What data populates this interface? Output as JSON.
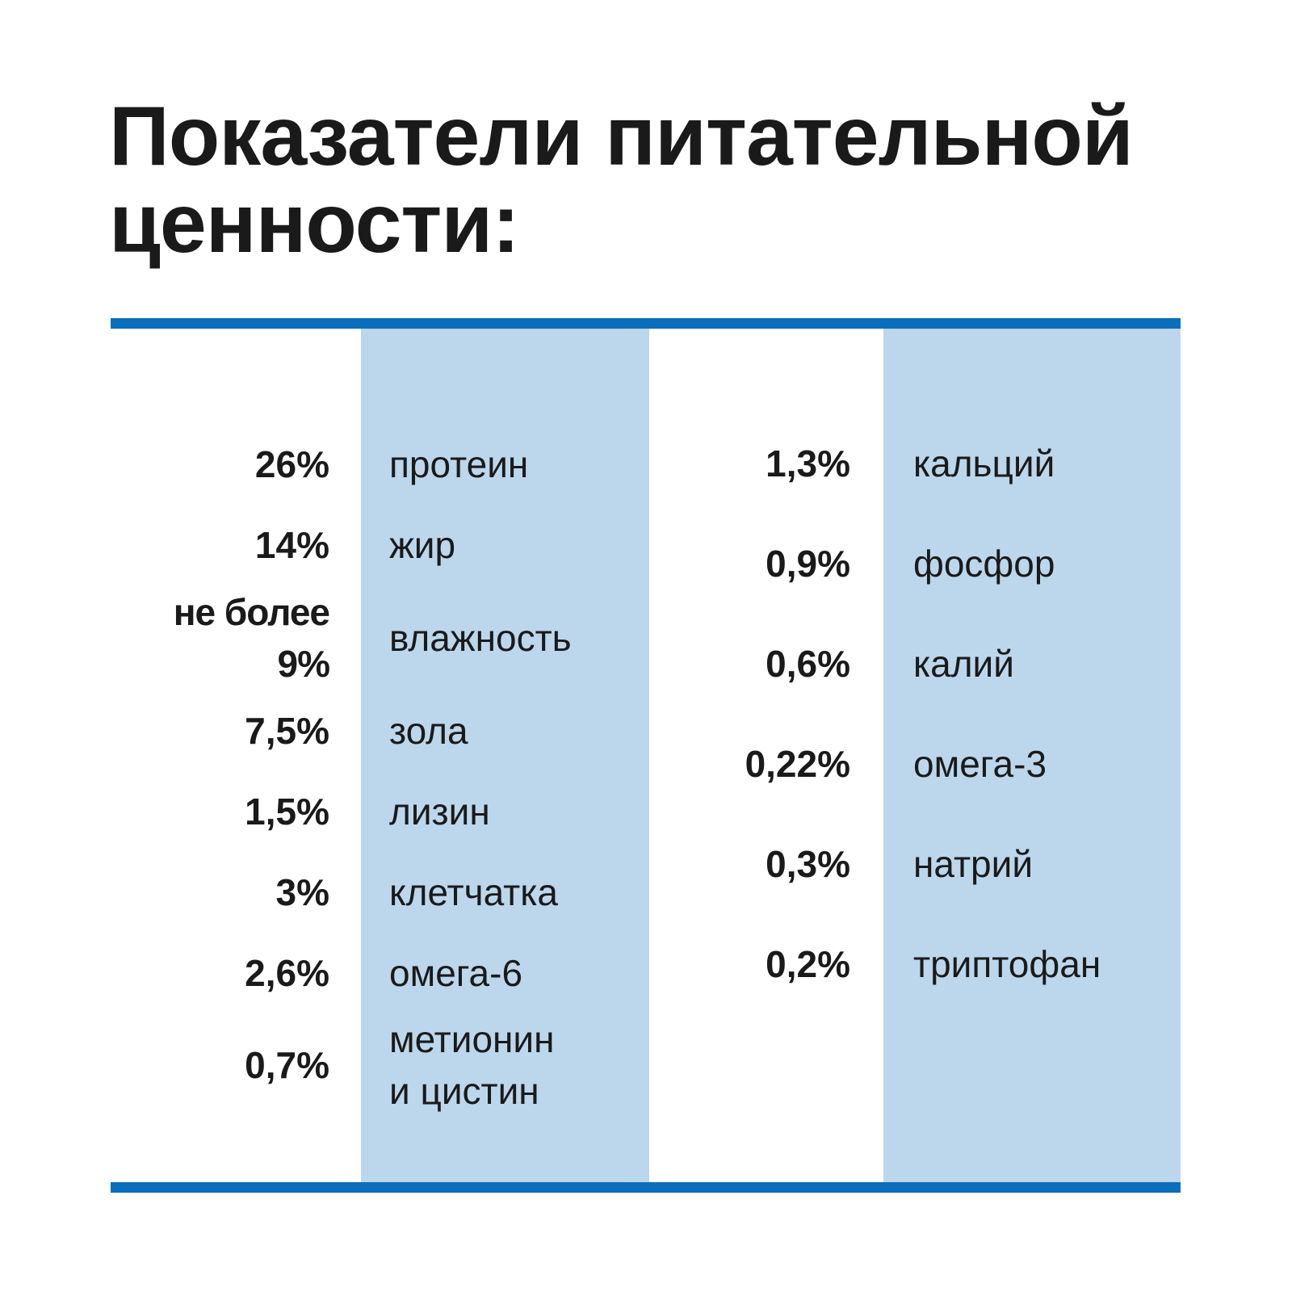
{
  "header": {
    "title": "Показатели питательной ценности:"
  },
  "left_table": {
    "rows": [
      {
        "value": "26%",
        "name": "протеин"
      },
      {
        "value": "14%",
        "name": "жир"
      },
      {
        "value": "не более 9%",
        "name": "влажность"
      },
      {
        "value": "7,5%",
        "name": "зола"
      },
      {
        "value": "1,5%",
        "name": "лизин"
      },
      {
        "value": "3%",
        "name": "клетчатка"
      },
      {
        "value": "2,6%",
        "name": "омега-6"
      },
      {
        "value": "0,7%",
        "name": "метионин\nи цистин"
      }
    ]
  },
  "right_table": {
    "rows": [
      {
        "value": "1,3%",
        "name": "кальций"
      },
      {
        "value": "0,9%",
        "name": "фосфор"
      },
      {
        "value": "0,6%",
        "name": "калий"
      },
      {
        "value": "0,22%",
        "name": "омега-3"
      },
      {
        "value": "0,3%",
        "name": "натрий"
      },
      {
        "value": "0,2%",
        "name": "триптофан"
      }
    ]
  }
}
